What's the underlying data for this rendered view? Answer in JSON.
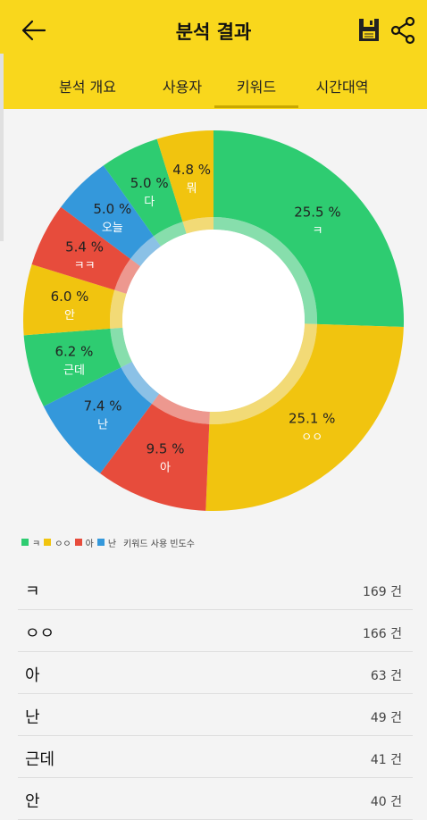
{
  "header": {
    "title": "분석 결과",
    "back_icon": "arrow-left-icon",
    "save_icon": "save-icon",
    "share_icon": "share-icon"
  },
  "tabs": [
    {
      "label": "분석 개요"
    },
    {
      "label": "사용자"
    },
    {
      "label": "키워드",
      "selected": true
    },
    {
      "label": "시간대역"
    }
  ],
  "chart_data": {
    "type": "pie",
    "style": "donut",
    "categories": [
      "ㅋ",
      "ㅇㅇ",
      "아",
      "난",
      "근데",
      "안",
      "ㅋㅋ",
      "오늘",
      "다",
      "뭐"
    ],
    "values": [
      25.5,
      25.1,
      9.5,
      7.4,
      6.2,
      6.0,
      5.4,
      5.0,
      5.0,
      4.8
    ],
    "value_labels": [
      "25.5 %",
      "25.1 %",
      "9.5 %",
      "7.4 %",
      "6.2 %",
      "6.0 %",
      "5.4 %",
      "5.0 %",
      "5.0 %",
      "4.8 %"
    ],
    "colors": [
      "#2ecc71",
      "#f1c40f",
      "#e74c3c",
      "#3498db",
      "#2ecc71",
      "#f1c40f",
      "#e74c3c",
      "#3498db",
      "#2ecc71",
      "#f1c40f"
    ],
    "legend": {
      "entries": [
        {
          "label": "ㅋ",
          "color": "#2ecc71"
        },
        {
          "label": "ㅇㅇ",
          "color": "#f1c40f"
        },
        {
          "label": "아",
          "color": "#e74c3c"
        },
        {
          "label": "난",
          "color": "#3498db"
        }
      ],
      "title": "키워드 사용 빈도수",
      "placement": "bottom-left"
    }
  },
  "list": [
    {
      "keyword": "ㅋ",
      "count": "169 건"
    },
    {
      "keyword": "ㅇㅇ",
      "count": "166 건"
    },
    {
      "keyword": "아",
      "count": "63 건"
    },
    {
      "keyword": "난",
      "count": "49 건"
    },
    {
      "keyword": "근데",
      "count": "41 건"
    },
    {
      "keyword": "안",
      "count": "40 건"
    }
  ]
}
